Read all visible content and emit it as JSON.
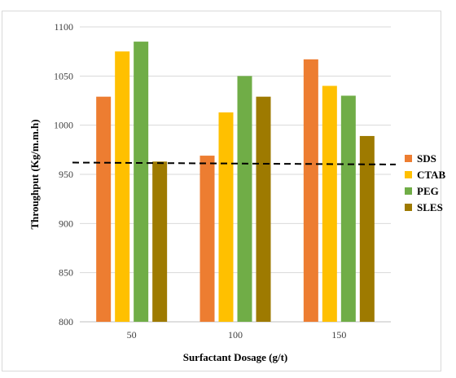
{
  "chart_data": {
    "type": "bar",
    "title": "",
    "xlabel": "Surfactant Dosage (g/t)",
    "ylabel": "Throughput (Kg/m.m.h)",
    "categories": [
      "50",
      "100",
      "150"
    ],
    "series": [
      {
        "name": "SDS",
        "color": "#ED7D31",
        "values": [
          1029,
          969,
          1067
        ]
      },
      {
        "name": "CTAB",
        "color": "#FFC000",
        "values": [
          1075,
          1013,
          1040
        ]
      },
      {
        "name": "PEG",
        "color": "#70AD47",
        "values": [
          1085,
          1050,
          1030
        ]
      },
      {
        "name": "SLES",
        "color": "#9E7A00",
        "values": [
          963,
          1029,
          989
        ]
      }
    ],
    "ylim": [
      800,
      1100
    ],
    "yticks": [
      800,
      850,
      900,
      950,
      1000,
      1050,
      1100
    ],
    "grid": true,
    "legend": "right",
    "reference_line": {
      "style": "dashed",
      "color": "#000000",
      "start": 962,
      "end": 960
    }
  }
}
